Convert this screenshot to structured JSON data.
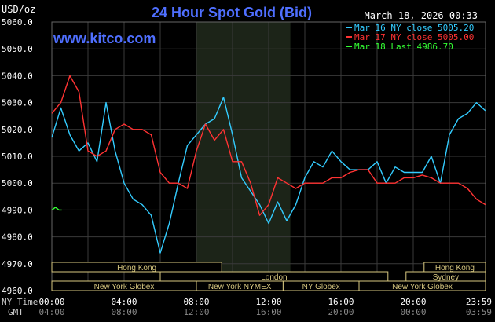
{
  "header": {
    "unit_label": "USD/oz",
    "title": "24 Hour Spot Gold (Bid)",
    "timestamp": "March 18, 2026 00:33",
    "watermark": "www.kitco.com"
  },
  "legend": [
    {
      "label": "Mar 16 NY close 5005.20",
      "color": "#33ccff"
    },
    {
      "label": "Mar 17 NY close 5005.00",
      "color": "#ff3333"
    },
    {
      "label": "Mar 18 Last 4986.70",
      "color": "#33ff33"
    }
  ],
  "sessions": [
    {
      "label": "Hong Kong",
      "row": 1,
      "start_h": 0.0,
      "end_h": 9.4
    },
    {
      "label": "London",
      "row": 2,
      "start_h": 6.0,
      "end_h": 18.6
    },
    {
      "label": "New York Globex",
      "row": 3,
      "start_h": 0.0,
      "end_h": 8.0
    },
    {
      "label": "New York NYMEX",
      "row": 3,
      "start_h": 8.0,
      "end_h": 12.8
    },
    {
      "label": "NY Globex",
      "row": 3,
      "start_h": 12.8,
      "end_h": 17.0
    },
    {
      "label": "Hong Kong",
      "row": 1,
      "start_h": 20.6,
      "end_h": 24.0
    },
    {
      "label": "Sydney",
      "row": 2,
      "start_h": 19.6,
      "end_h": 24.0
    },
    {
      "label": "New York Globex",
      "row": 3,
      "start_h": 17.0,
      "end_h": 24.0
    }
  ],
  "time_labels": {
    "ny_row_label": "NY Time",
    "gmt_row_label": "GMT",
    "ny_ticks": [
      "00:00",
      "04:00",
      "08:00",
      "12:00",
      "16:00",
      "20:00",
      "23:59"
    ],
    "gmt_ticks": [
      "04:00",
      "08:00",
      "12:00",
      "16:00",
      "20:00",
      "00:00",
      "03:59"
    ]
  },
  "chart_data": {
    "type": "line",
    "title": "24 Hour Spot Gold (Bid)",
    "ylabel": "USD/oz",
    "xlabel": "",
    "ylim": [
      4960,
      5060
    ],
    "y_ticks": [
      4960,
      4970,
      4980,
      4990,
      5000,
      5010,
      5020,
      5030,
      5040,
      5050,
      5060
    ],
    "y_tick_labels": [
      "4960.0",
      "4970.0",
      "4980.0",
      "4990.0",
      "5000.0",
      "5010.0",
      "5020.0",
      "5030.0",
      "5040.0",
      "5050.0",
      "5060.0"
    ],
    "xlim_hours": [
      0,
      24
    ],
    "x_tick_hours": [
      0,
      4,
      8,
      12,
      16,
      20,
      24
    ],
    "x_tick_labels": [
      "00:00",
      "04:00",
      "08:00",
      "12:00",
      "16:00",
      "20:00",
      "23:59"
    ],
    "highlight_hours": [
      8.0,
      13.2
    ],
    "grid": true,
    "series": [
      {
        "name": "Mar 16 NY close 5005.20",
        "color": "#33ccff",
        "x": [
          0,
          0.5,
          1.0,
          1.5,
          2.0,
          2.5,
          3.0,
          3.5,
          4.0,
          4.5,
          5.0,
          5.5,
          6.0,
          6.5,
          7.0,
          7.5,
          8.0,
          8.5,
          9.0,
          9.5,
          10.0,
          10.5,
          11.0,
          11.5,
          12.0,
          12.5,
          13.0,
          13.5,
          14.0,
          14.5,
          15.0,
          15.5,
          16.0,
          16.5,
          17.0,
          17.5,
          18.0,
          18.5,
          19.0,
          19.5,
          20.0,
          20.5,
          21.0,
          21.5,
          22.0,
          22.5,
          23.0,
          23.5,
          23.99
        ],
        "y": [
          5017,
          5028,
          5018,
          5012,
          5015,
          5008,
          5030,
          5012,
          5000,
          4994,
          4992,
          4988,
          4974,
          4985,
          5000,
          5014,
          5018,
          5022,
          5024,
          5032,
          5018,
          5002,
          4997,
          4992,
          4985,
          4993,
          4986,
          4992,
          5002,
          5008,
          5006,
          5012,
          5008,
          5005,
          5005,
          5005,
          5008,
          5000,
          5006,
          5004,
          5004,
          5004,
          5010,
          5000,
          5018,
          5024,
          5026,
          5030,
          5027
        ]
      },
      {
        "name": "Mar 17 NY close 5005.00",
        "color": "#ff3333",
        "x": [
          0,
          0.5,
          1.0,
          1.5,
          2.0,
          2.5,
          3.0,
          3.5,
          4.0,
          4.5,
          5.0,
          5.5,
          6.0,
          6.5,
          7.0,
          7.5,
          8.0,
          8.5,
          9.0,
          9.5,
          10.0,
          10.5,
          11.0,
          11.5,
          12.0,
          12.5,
          13.0,
          13.5,
          14.0,
          14.5,
          15.0,
          15.5,
          16.0,
          16.5,
          17.0,
          17.5,
          18.0,
          18.5,
          19.0,
          19.5,
          20.0,
          20.5,
          21.0,
          21.5,
          22.0,
          22.5,
          23.0,
          23.5,
          23.99
        ],
        "y": [
          5026,
          5030,
          5040,
          5034,
          5012,
          5010,
          5012,
          5020,
          5022,
          5020,
          5020,
          5018,
          5004,
          5000,
          5000,
          4998,
          5012,
          5022,
          5016,
          5020,
          5008,
          5008,
          5000,
          4988,
          4992,
          5002,
          5000,
          4998,
          5000,
          5000,
          5000,
          5002,
          5002,
          5004,
          5005,
          5005,
          5000,
          5000,
          5000,
          5002,
          5002,
          5003,
          5002,
          5000,
          5000,
          5000,
          4998,
          4994,
          4992
        ]
      },
      {
        "name": "Mar 18 Last 4986.70",
        "color": "#33ff33",
        "x": [
          0.0,
          0.2,
          0.4,
          0.55
        ],
        "y": [
          4990,
          4991,
          4990,
          4990
        ]
      }
    ]
  }
}
